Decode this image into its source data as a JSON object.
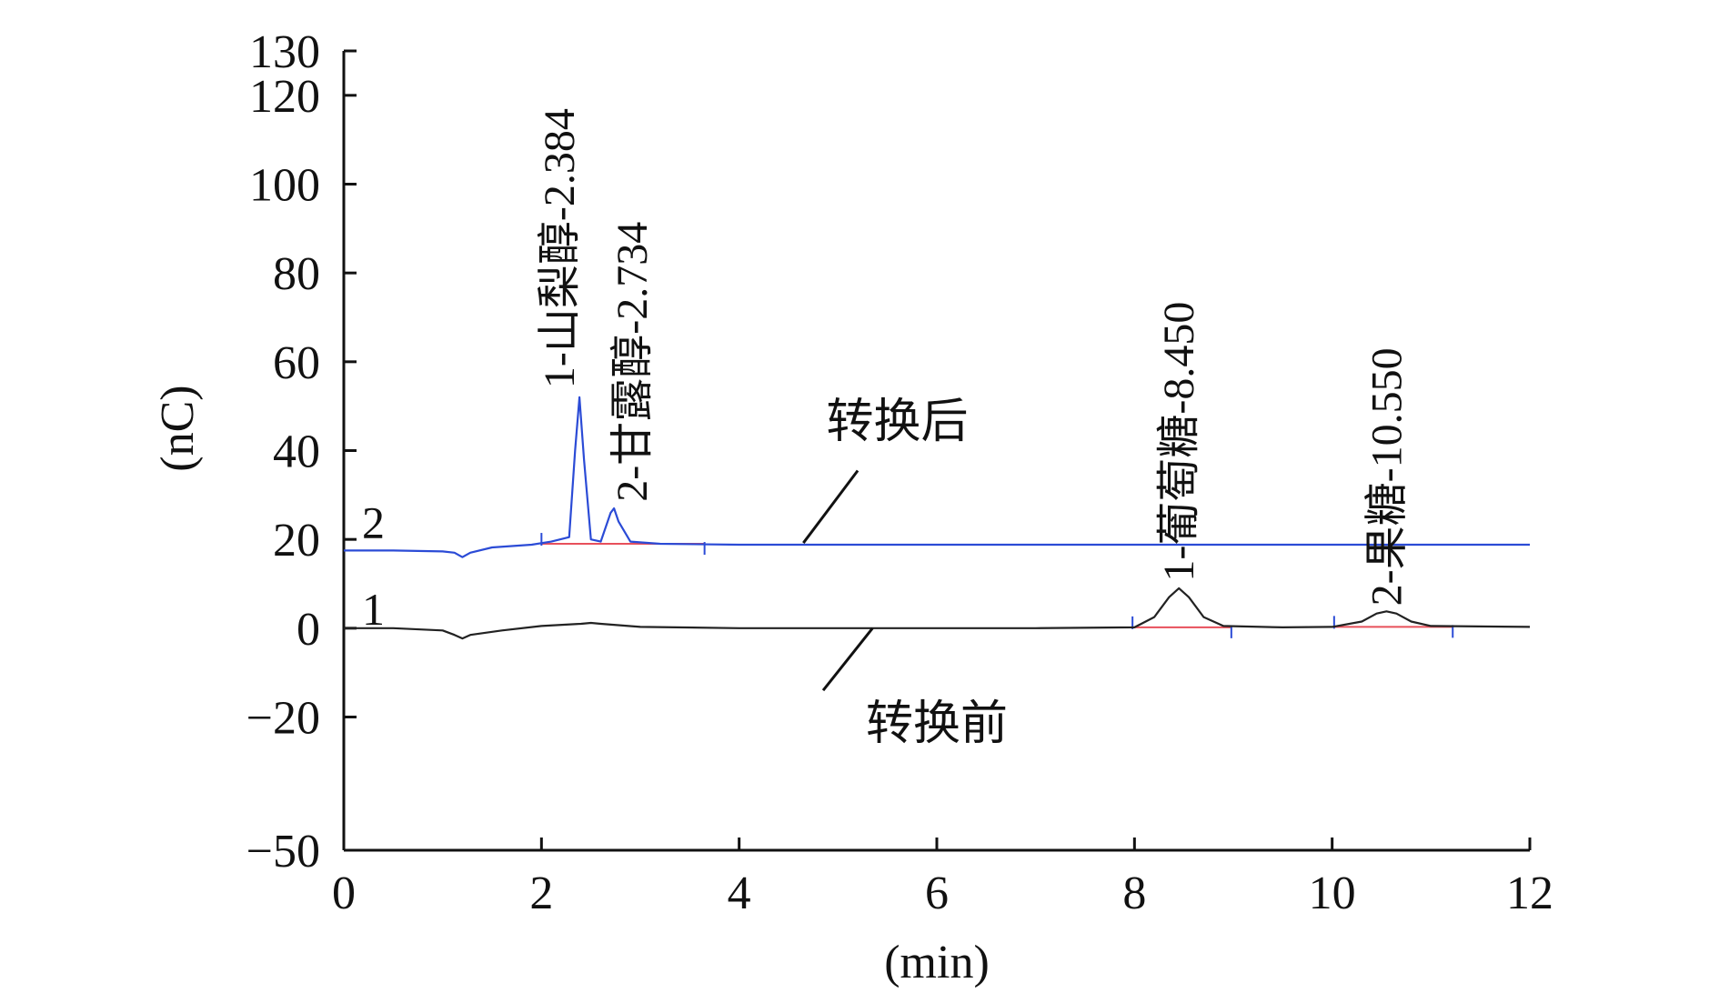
{
  "chart_data": {
    "type": "line",
    "xlabel": "(min)",
    "ylabel": "(nC)",
    "xlim": [
      0,
      12
    ],
    "ylim": [
      -50,
      130
    ],
    "x_ticks": [
      0,
      2,
      4,
      6,
      8,
      10,
      12
    ],
    "y_ticks": [
      -50,
      -20,
      0,
      20,
      40,
      60,
      80,
      100,
      120,
      130
    ],
    "grid": false,
    "colors": {
      "trace_after": "#2b4bd6",
      "trace_before": "#222222",
      "baseline_marks": "#e8505b",
      "axis": "#111111"
    },
    "series": [
      {
        "number": "2",
        "label": "转换后",
        "color": "#2b4bd6",
        "x": [
          0,
          0.5,
          1.0,
          1.12,
          1.2,
          1.28,
          1.5,
          1.9,
          2.1,
          2.28,
          2.34,
          2.384,
          2.43,
          2.5,
          2.6,
          2.7,
          2.734,
          2.78,
          2.9,
          3.2,
          4,
          6,
          8,
          10,
          12
        ],
        "y": [
          17.5,
          17.5,
          17.3,
          17.0,
          16.0,
          17.0,
          18.2,
          18.8,
          19.5,
          20.5,
          40.0,
          52.0,
          38.0,
          20.0,
          19.5,
          26.0,
          27.0,
          24.0,
          19.5,
          19.0,
          18.8,
          18.8,
          18.8,
          18.8,
          18.8
        ]
      },
      {
        "number": "1",
        "label": "转换前",
        "color": "#222222",
        "x": [
          0,
          0.5,
          1.0,
          1.12,
          1.2,
          1.28,
          1.6,
          2.0,
          2.4,
          2.5,
          2.6,
          3.0,
          4,
          6,
          7,
          8.0,
          8.2,
          8.35,
          8.45,
          8.55,
          8.7,
          8.9,
          9.5,
          10.0,
          10.3,
          10.45,
          10.55,
          10.65,
          10.8,
          11.0,
          12
        ],
        "y": [
          0,
          0,
          -0.5,
          -1.5,
          -2.3,
          -1.5,
          -0.5,
          0.5,
          1.0,
          1.2,
          1.0,
          0.3,
          0,
          0,
          0,
          0.2,
          2.5,
          7.0,
          9.0,
          7.0,
          2.5,
          0.5,
          0.2,
          0.3,
          1.5,
          3.3,
          3.8,
          3.3,
          1.5,
          0.5,
          0.3
        ]
      }
    ],
    "annotations": [
      {
        "text": "1-山梨醇-2.384",
        "x": 2.384,
        "series": "转换后"
      },
      {
        "text": "2-甘露醇-2.734",
        "x": 2.734,
        "series": "转换后"
      },
      {
        "text": "1-葡萄糖-8.450",
        "x": 8.45,
        "series": "转换前"
      },
      {
        "text": "2-果糖-10.550",
        "x": 10.55,
        "series": "转换前"
      }
    ],
    "integration_markers": [
      {
        "series": "转换后",
        "x_start": 2.0,
        "x_end": 3.65,
        "baseline": 19.0
      },
      {
        "series": "转换前",
        "x_start": 7.98,
        "x_end": 8.98,
        "baseline": 0.2
      },
      {
        "series": "转换前",
        "x_start": 10.02,
        "x_end": 11.22,
        "baseline": 0.3
      }
    ]
  }
}
